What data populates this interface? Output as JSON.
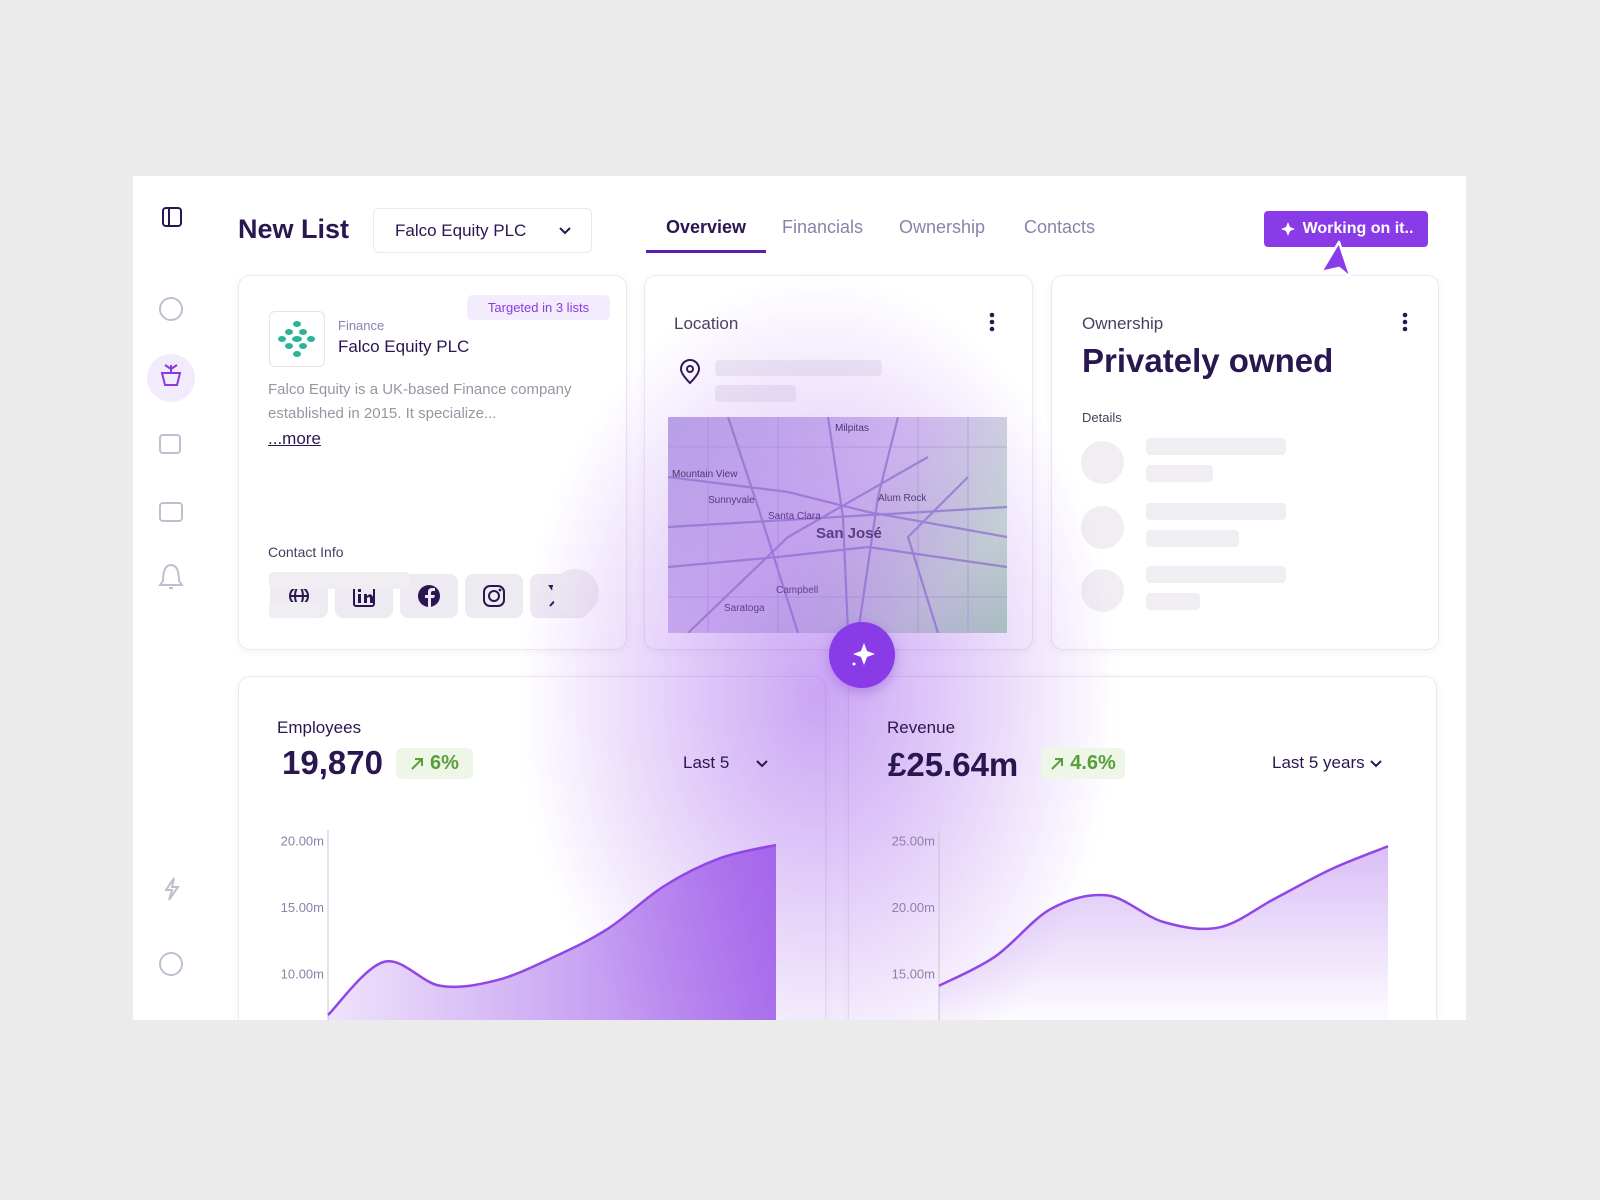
{
  "header": {
    "title": "New List",
    "company_select": "Falco Equity PLC",
    "tabs": [
      "Overview",
      "Financials",
      "Ownership",
      "Contacts"
    ],
    "active_tab": 0,
    "action_button": "Working on it.."
  },
  "company_card": {
    "badge": "Targeted in 3 lists",
    "sector": "Finance",
    "name": "Falco Equity PLC",
    "description": "Falco Equity is a UK-based Finance company established in 2015. It specialize...",
    "more": "...more",
    "contact_label": "Contact Info"
  },
  "location_card": {
    "title": "Location",
    "map_labels": [
      "Milpitas",
      "Mountain View",
      "Sunnyvale",
      "Santa Clara",
      "Alum Rock",
      "San José",
      "Campbell",
      "Saratoga"
    ]
  },
  "ownership_card": {
    "label": "Ownership",
    "value": "Privately owned",
    "details_label": "Details"
  },
  "employees_card": {
    "label": "Employees",
    "value": "19,870",
    "change": "6%",
    "period": "Last 5",
    "chart": {
      "type": "area",
      "color": "#9146e6",
      "values": [
        7.0,
        11.0,
        9.2,
        9.6,
        11.3,
        13.5,
        16.7,
        18.8,
        19.8
      ],
      "ylim": [
        7,
        21
      ],
      "yticks": [
        {
          "value": 20,
          "label": "20.00m"
        },
        {
          "value": 15,
          "label": "15.00m"
        },
        {
          "value": 10,
          "label": "10.00m"
        }
      ]
    }
  },
  "revenue_card": {
    "label": "Revenue",
    "value": "£25.64m",
    "change": "4.6%",
    "period": "Last 5 years",
    "chart": {
      "type": "area",
      "color": "#9146e6",
      "values": [
        14.2,
        16.4,
        20.0,
        21.0,
        19.0,
        18.6,
        20.8,
        23.0,
        24.7
      ],
      "ylim": [
        12,
        26
      ],
      "yticks": [
        {
          "value": 25,
          "label": "25.00m"
        },
        {
          "value": 20,
          "label": "20.00m"
        },
        {
          "value": 15,
          "label": "15.00m"
        }
      ]
    }
  }
}
